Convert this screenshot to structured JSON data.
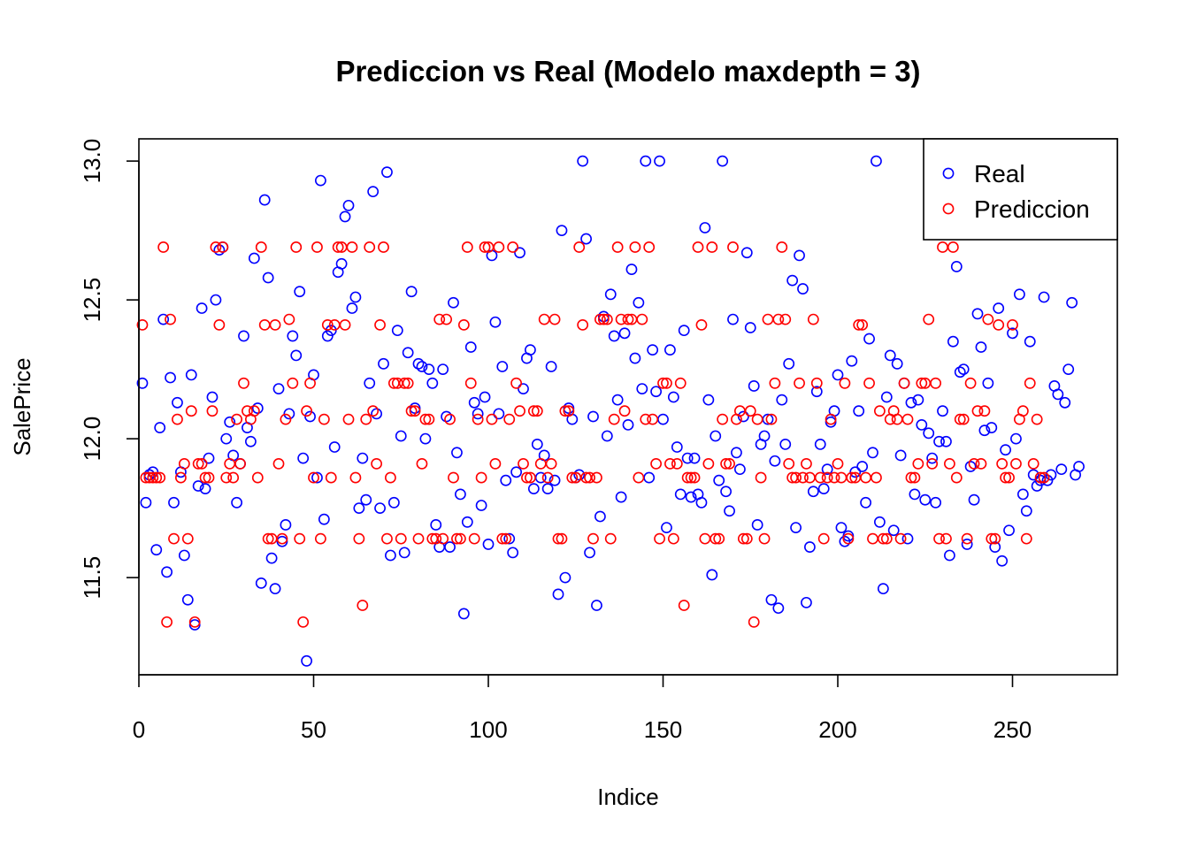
{
  "chart_data": {
    "type": "scatter",
    "title": "Prediccion vs Real (Modelo maxdepth = 3)",
    "xlabel": "Indice",
    "ylabel": "SalePrice",
    "xlim": [
      0,
      280
    ],
    "ylim": [
      11.15,
      13.08
    ],
    "xticks": [
      "0",
      "50",
      "100",
      "150",
      "200",
      "250"
    ],
    "yticks": [
      "11.5",
      "12.0",
      "12.5",
      "13.0"
    ],
    "grid": false,
    "legend_position": "top-right",
    "series": [
      {
        "name": "Real",
        "color": "#0000ff",
        "values": [
          12.2,
          11.77,
          11.87,
          11.88,
          11.6,
          12.04,
          12.43,
          11.52,
          12.22,
          11.77,
          12.13,
          11.88,
          11.58,
          11.42,
          12.23,
          11.33,
          11.83,
          12.47,
          11.82,
          11.93,
          12.15,
          12.5,
          12.68,
          12.69,
          12.0,
          12.06,
          11.94,
          11.77,
          11.91,
          12.37,
          12.04,
          11.99,
          12.65,
          12.11,
          11.48,
          12.86,
          12.58,
          11.57,
          11.46,
          12.18,
          11.63,
          11.69,
          12.09,
          12.37,
          12.3,
          12.53,
          11.93,
          11.2,
          12.08,
          12.23,
          11.86,
          12.93,
          11.71,
          12.37,
          12.39,
          11.97,
          12.6,
          12.63,
          12.8,
          12.84,
          12.47,
          12.51,
          11.75,
          11.93,
          11.78,
          12.2,
          12.89,
          12.09,
          11.75,
          12.27,
          12.96,
          11.58,
          11.77,
          12.39,
          12.01,
          11.59,
          12.31,
          12.53,
          12.11,
          12.27,
          12.26,
          12.0,
          12.25,
          12.2,
          11.69,
          11.61,
          12.25,
          12.08,
          11.61,
          12.49,
          11.95,
          11.8,
          11.37,
          11.7,
          12.33,
          12.13,
          12.09,
          11.76,
          12.15,
          11.62,
          12.66,
          12.42,
          12.09,
          12.26,
          11.85,
          11.64,
          11.59,
          11.88,
          12.67,
          12.18,
          12.29,
          12.32,
          11.82,
          11.98,
          11.86,
          11.94,
          11.82,
          12.26,
          11.85,
          11.44,
          12.75,
          11.5,
          12.11,
          12.07,
          11.86,
          11.87,
          13.0,
          12.72,
          11.59,
          12.08,
          11.4,
          11.72,
          12.44,
          12.01,
          12.52,
          12.37,
          12.14,
          11.79,
          12.38,
          12.05,
          12.61,
          12.29,
          12.49,
          12.18,
          13.0,
          11.86,
          12.32,
          12.17,
          13.0,
          12.07,
          11.68,
          12.32,
          12.15,
          11.97,
          11.8,
          12.39,
          11.93,
          11.79,
          11.93,
          11.8,
          11.77,
          12.76,
          12.14,
          11.51,
          12.01,
          11.85,
          13.0,
          11.81,
          11.74,
          12.43,
          11.95,
          11.89,
          12.08,
          12.67,
          12.4,
          12.19,
          11.69,
          11.98,
          12.01,
          12.07,
          11.42,
          11.92,
          11.39,
          12.14,
          11.98,
          12.27,
          12.57,
          11.68,
          12.66,
          12.54,
          11.41,
          11.61,
          11.81,
          12.17,
          11.98,
          11.82,
          11.89,
          12.06,
          12.1,
          12.23,
          11.68,
          11.63,
          11.65,
          12.28,
          11.88,
          12.1,
          11.9,
          11.77,
          12.36,
          11.95,
          13.0,
          11.7,
          11.46,
          12.15,
          12.3,
          11.67,
          12.27,
          11.94,
          12.2,
          11.64,
          12.13,
          11.8,
          12.14,
          12.05,
          11.78,
          12.02,
          11.93,
          11.77,
          11.99,
          12.1,
          11.99,
          11.58,
          12.35,
          12.62,
          12.24,
          12.25,
          11.62,
          11.9,
          11.78,
          12.45,
          12.33,
          12.03,
          12.2,
          12.04,
          11.61,
          12.47,
          11.56,
          11.96,
          11.67,
          12.38,
          12.0,
          12.52,
          11.8,
          11.74,
          12.35,
          11.87,
          11.83,
          11.85,
          12.51,
          11.85,
          11.87,
          12.19,
          12.16,
          11.89,
          12.13,
          12.25,
          12.49,
          11.87,
          11.9
        ]
      },
      {
        "name": "Prediccion",
        "color": "#ff0000",
        "values": [
          12.41,
          11.86,
          11.86,
          11.86,
          11.86,
          11.86,
          12.69,
          11.34,
          12.43,
          11.64,
          12.07,
          11.86,
          11.91,
          11.64,
          12.1,
          11.34,
          11.91,
          11.91,
          11.86,
          11.86,
          12.1,
          12.69,
          12.41,
          12.69,
          11.86,
          11.91,
          11.86,
          12.07,
          11.91,
          12.2,
          12.1,
          12.07,
          12.1,
          11.86,
          12.69,
          12.41,
          11.64,
          11.64,
          12.41,
          11.91,
          11.64,
          12.07,
          12.43,
          12.2,
          12.69,
          11.64,
          11.34,
          12.1,
          12.2,
          11.86,
          12.69,
          11.64,
          12.07,
          12.41,
          11.86,
          12.41,
          12.69,
          12.69,
          12.41,
          12.07,
          12.69,
          11.86,
          11.64,
          11.4,
          12.07,
          12.69,
          12.1,
          11.91,
          12.41,
          12.69,
          11.64,
          11.86,
          12.2,
          12.2,
          11.64,
          12.2,
          12.2,
          12.1,
          12.1,
          11.64,
          11.91,
          12.07,
          12.07,
          11.64,
          11.64,
          12.43,
          11.64,
          12.43,
          12.07,
          11.86,
          11.64,
          11.64,
          12.41,
          12.69,
          12.2,
          11.64,
          12.07,
          11.86,
          12.69,
          12.69,
          12.07,
          11.91,
          12.69,
          11.64,
          11.64,
          12.07,
          12.69,
          12.2,
          12.1,
          11.91,
          11.86,
          11.86,
          12.1,
          12.1,
          11.91,
          12.43,
          11.86,
          11.91,
          12.43,
          11.64,
          11.64,
          12.1,
          12.1,
          11.86,
          11.86,
          12.69,
          12.41,
          11.86,
          11.86,
          11.64,
          11.86,
          12.43,
          12.43,
          12.43,
          11.64,
          12.07,
          12.69,
          12.43,
          12.1,
          12.43,
          12.43,
          12.69,
          11.86,
          12.43,
          12.07,
          12.69,
          12.07,
          11.91,
          11.64,
          12.2,
          12.2,
          11.91,
          11.64,
          11.91,
          12.2,
          11.4,
          11.86,
          11.86,
          11.86,
          12.69,
          12.41,
          11.64,
          11.91,
          12.69,
          11.64,
          11.64,
          12.07,
          11.91,
          11.91,
          12.69,
          12.07,
          12.1,
          11.64,
          11.64,
          12.1,
          11.34,
          12.07,
          11.86,
          11.64,
          12.43,
          12.07,
          12.2,
          12.43,
          12.69,
          12.43,
          11.91,
          11.86,
          11.86,
          12.2,
          11.86,
          11.91,
          11.86,
          12.43,
          12.2,
          11.86,
          11.64,
          11.86,
          12.07,
          11.86,
          11.91,
          11.86,
          12.2,
          11.64,
          11.86,
          11.86,
          12.41,
          12.41,
          11.86,
          12.2,
          11.64,
          11.86,
          12.1,
          11.64,
          11.64,
          12.07,
          12.1,
          12.07,
          11.64,
          12.2,
          12.07,
          11.86,
          11.86,
          11.91,
          12.2,
          12.2,
          12.43,
          11.91,
          12.2,
          11.64,
          12.69,
          11.64,
          11.91,
          12.69,
          11.86,
          12.07,
          12.07,
          11.64,
          12.2,
          11.91,
          12.1,
          11.91,
          12.1,
          12.43,
          11.64,
          11.64,
          12.41,
          11.91,
          11.86,
          11.86,
          12.41,
          11.91,
          12.07,
          12.1,
          11.64,
          12.2,
          11.91,
          12.07,
          11.86,
          11.86
        ]
      }
    ]
  }
}
